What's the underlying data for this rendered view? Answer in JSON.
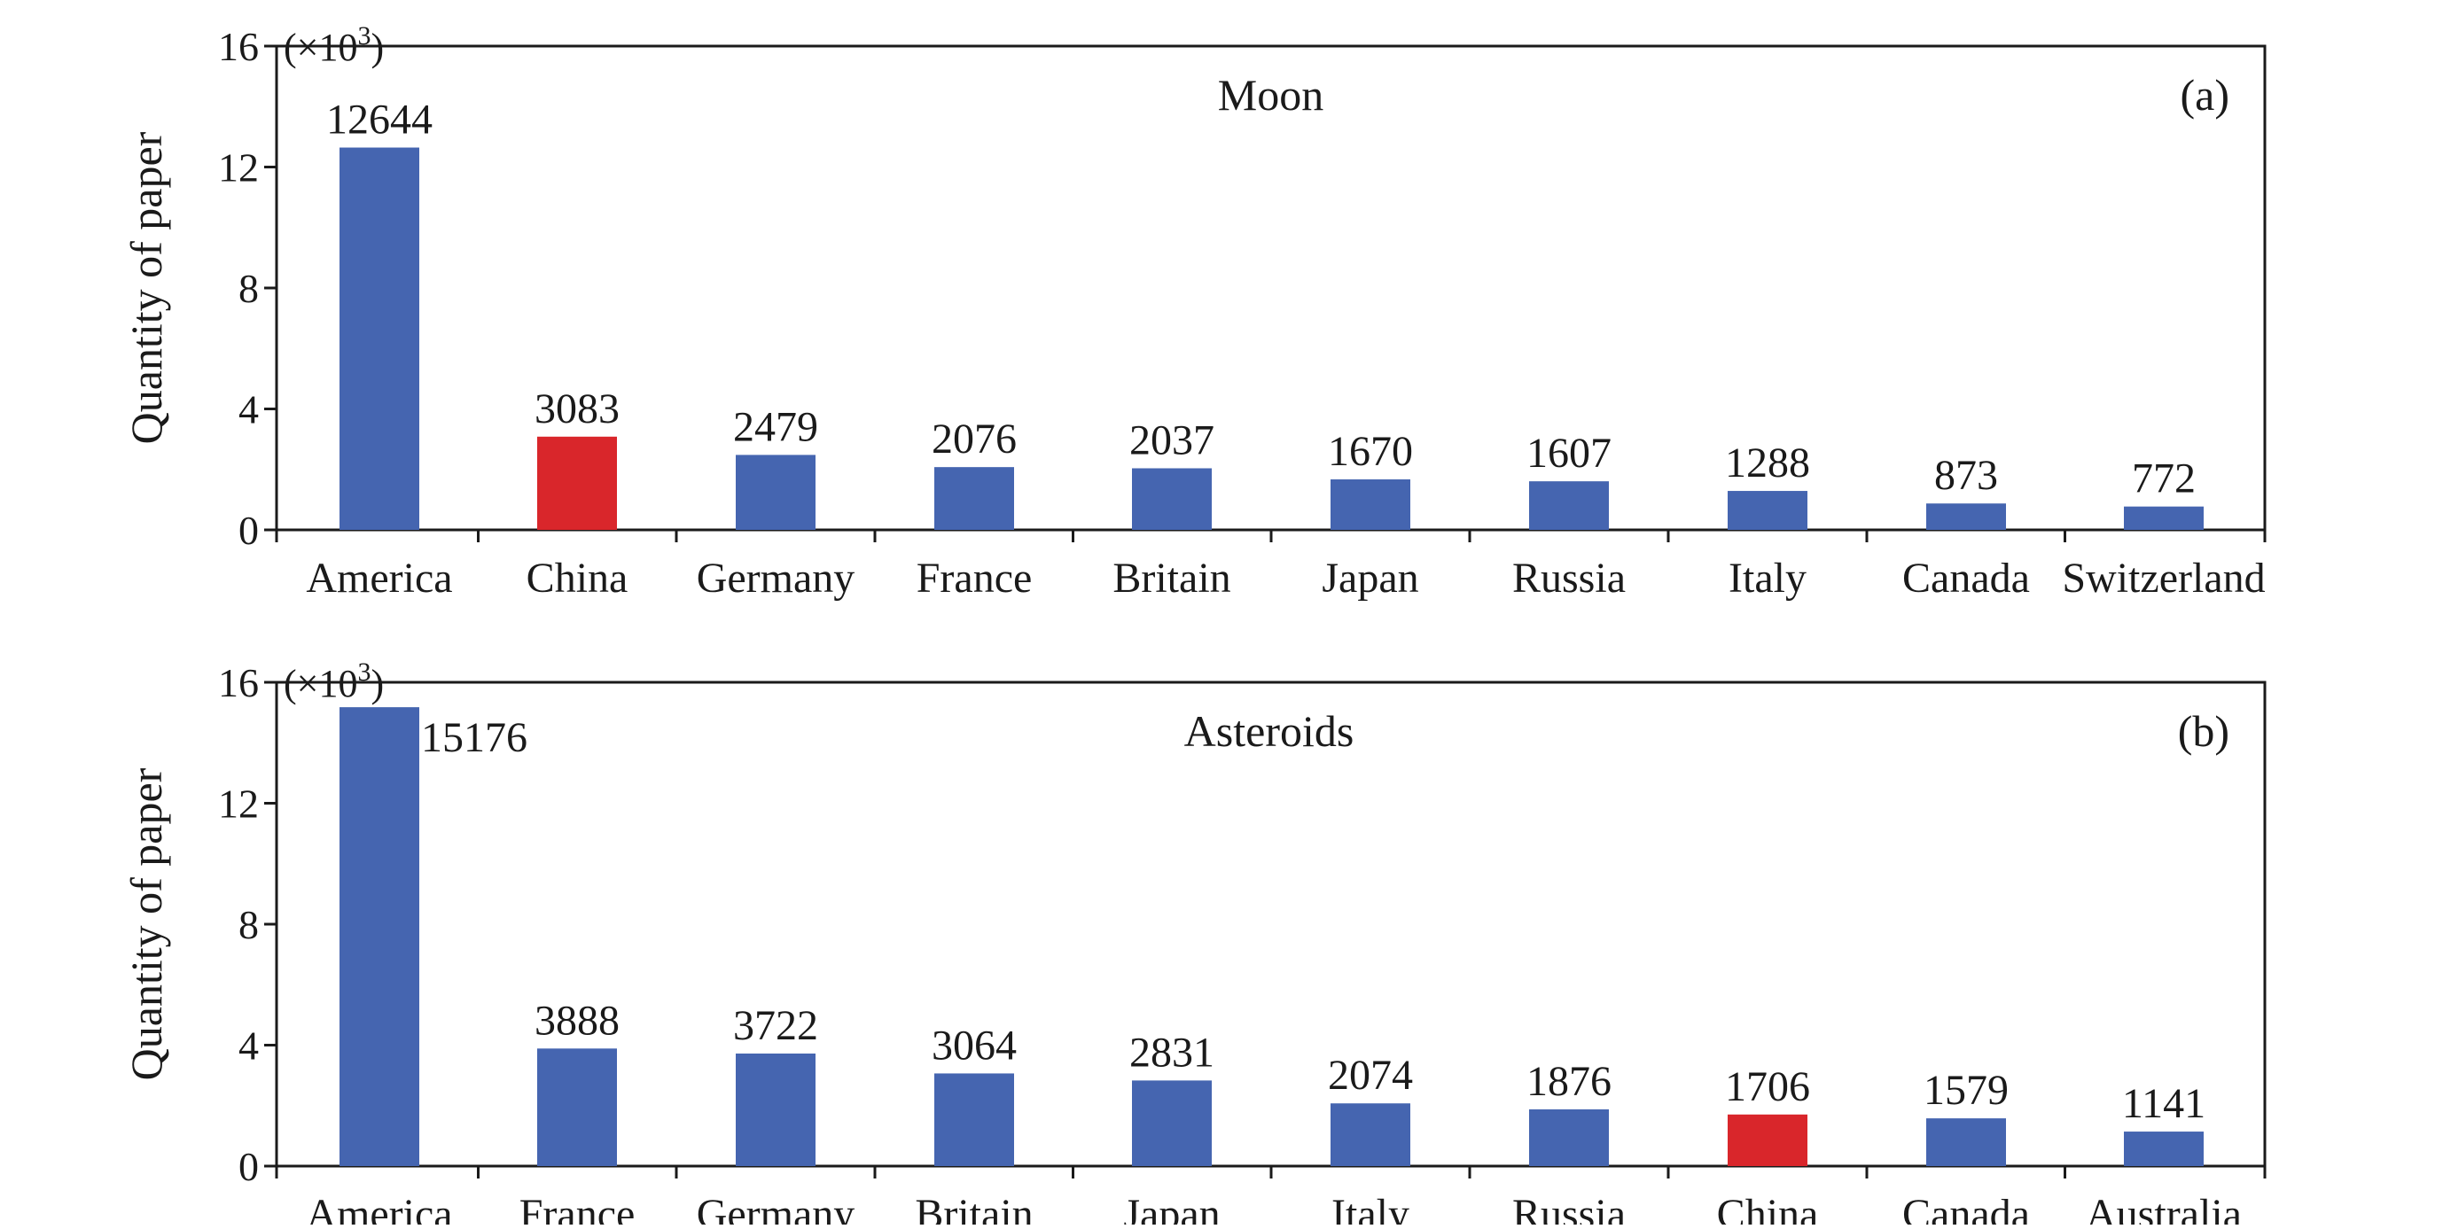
{
  "chart_data": [
    {
      "type": "bar",
      "title": "Moon",
      "panel_tag": "(a)",
      "ylabel": "Quantity of paper",
      "y_multiplier": "(×10",
      "y_multiplier_exp": "3",
      "y_multiplier_close": ")",
      "ylim": [
        0,
        16
      ],
      "yticks": [
        "0",
        "4",
        "8",
        "12",
        "16"
      ],
      "yticks_values": [
        0,
        4,
        8,
        12,
        16
      ],
      "categories": [
        "America",
        "China",
        "Germany",
        "France",
        "Britain",
        "Japan",
        "Russia",
        "Italy",
        "Canada",
        "Switzerland"
      ],
      "values": [
        12644,
        3083,
        2479,
        2076,
        2037,
        1670,
        1607,
        1288,
        873,
        772
      ],
      "value_labels": [
        "12644",
        "3083",
        "2479",
        "2076",
        "2037",
        "1670",
        "1607",
        "1288",
        "873",
        "772"
      ],
      "highlight_category": "China",
      "colors": {
        "bar": "#4565b0",
        "highlight": "#d9262b"
      },
      "grid": false
    },
    {
      "type": "bar",
      "title": "Asteroids",
      "panel_tag": "(b)",
      "ylabel": "Quantity of paper",
      "y_multiplier": "(×10",
      "y_multiplier_exp": "3",
      "y_multiplier_close": ")",
      "ylim": [
        0,
        16
      ],
      "yticks": [
        "0",
        "4",
        "8",
        "12",
        "16"
      ],
      "yticks_values": [
        0,
        4,
        8,
        12,
        16
      ],
      "categories": [
        "America",
        "France",
        "Germany",
        "Britain",
        "Japan",
        "Italy",
        "Russia",
        "China",
        "Canada",
        "Australia"
      ],
      "values": [
        15176,
        3888,
        3722,
        3064,
        2831,
        2074,
        1876,
        1706,
        1579,
        1141
      ],
      "value_labels": [
        "15176",
        "3888",
        "3722",
        "3064",
        "2831",
        "2074",
        "1876",
        "1706",
        "1579",
        "1141"
      ],
      "highlight_category": "China",
      "colors": {
        "bar": "#4565b0",
        "highlight": "#d9262b"
      },
      "grid": false
    }
  ]
}
